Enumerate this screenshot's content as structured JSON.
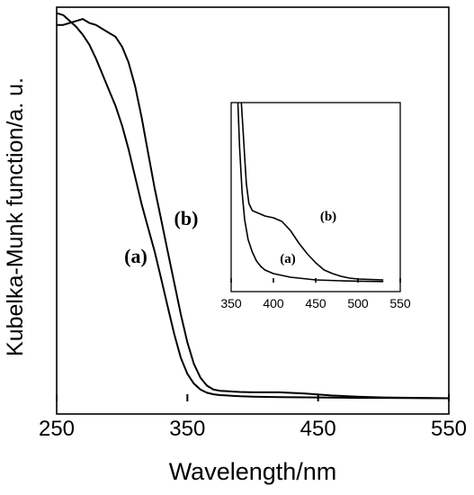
{
  "chart_data": [
    {
      "type": "line",
      "title": "",
      "xlabel": "Wavelength/nm",
      "ylabel": "Kubelka-Munk function/a. u.",
      "xlim": [
        250,
        550
      ],
      "x_ticks": [
        "250",
        "350",
        "450",
        "550"
      ],
      "y_ticks": [],
      "grid": false,
      "series": [
        {
          "name": "(a)",
          "color": "#000000",
          "x": [
            250,
            255,
            260,
            265,
            270,
            275,
            280,
            285,
            290,
            295,
            300,
            305,
            310,
            315,
            320,
            325,
            330,
            335,
            340,
            345,
            350,
            355,
            360,
            365,
            370,
            375,
            380,
            385,
            390,
            400,
            420,
            450,
            480,
            500,
            550
          ],
          "y": [
            0.985,
            0.98,
            0.965,
            0.95,
            0.93,
            0.905,
            0.87,
            0.83,
            0.79,
            0.75,
            0.7,
            0.64,
            0.57,
            0.5,
            0.44,
            0.38,
            0.31,
            0.24,
            0.17,
            0.11,
            0.07,
            0.045,
            0.03,
            0.022,
            0.018,
            0.016,
            0.015,
            0.014,
            0.013,
            0.012,
            0.011,
            0.01,
            0.009,
            0.009,
            0.008
          ]
        },
        {
          "name": "(b)",
          "color": "#000000",
          "x": [
            250,
            255,
            260,
            265,
            270,
            275,
            280,
            285,
            290,
            295,
            300,
            305,
            310,
            315,
            320,
            325,
            330,
            335,
            340,
            345,
            350,
            355,
            360,
            365,
            370,
            375,
            380,
            385,
            390,
            400,
            420,
            440,
            460,
            480,
            500,
            550
          ],
          "y": [
            0.955,
            0.955,
            0.96,
            0.965,
            0.97,
            0.96,
            0.955,
            0.945,
            0.935,
            0.925,
            0.9,
            0.86,
            0.8,
            0.72,
            0.63,
            0.54,
            0.46,
            0.38,
            0.3,
            0.22,
            0.15,
            0.095,
            0.06,
            0.04,
            0.03,
            0.027,
            0.026,
            0.025,
            0.024,
            0.023,
            0.023,
            0.02,
            0.015,
            0.012,
            0.01,
            0.008
          ]
        }
      ]
    },
    {
      "type": "line",
      "title": "",
      "xlabel": "",
      "ylabel": "",
      "xlim": [
        350,
        550
      ],
      "x_ticks": [
        "350",
        "400",
        "450",
        "500",
        "550"
      ],
      "grid": false,
      "series": [
        {
          "name": "(a)",
          "color": "#000000",
          "x": [
            358,
            360,
            363,
            366,
            370,
            375,
            380,
            385,
            390,
            400,
            420,
            450,
            480,
            500,
            530
          ],
          "y": [
            1.0,
            0.75,
            0.5,
            0.35,
            0.24,
            0.17,
            0.12,
            0.09,
            0.07,
            0.05,
            0.03,
            0.015,
            0.01,
            0.008,
            0.006
          ]
        },
        {
          "name": "(b)",
          "color": "#000000",
          "x": [
            362,
            364,
            366,
            368,
            371,
            375,
            380,
            390,
            400,
            410,
            420,
            430,
            440,
            450,
            460,
            470,
            480,
            490,
            500,
            530
          ],
          "y": [
            1.0,
            0.85,
            0.7,
            0.55,
            0.44,
            0.4,
            0.39,
            0.37,
            0.36,
            0.34,
            0.29,
            0.22,
            0.16,
            0.11,
            0.07,
            0.05,
            0.035,
            0.025,
            0.02,
            0.015
          ]
        }
      ]
    }
  ]
}
